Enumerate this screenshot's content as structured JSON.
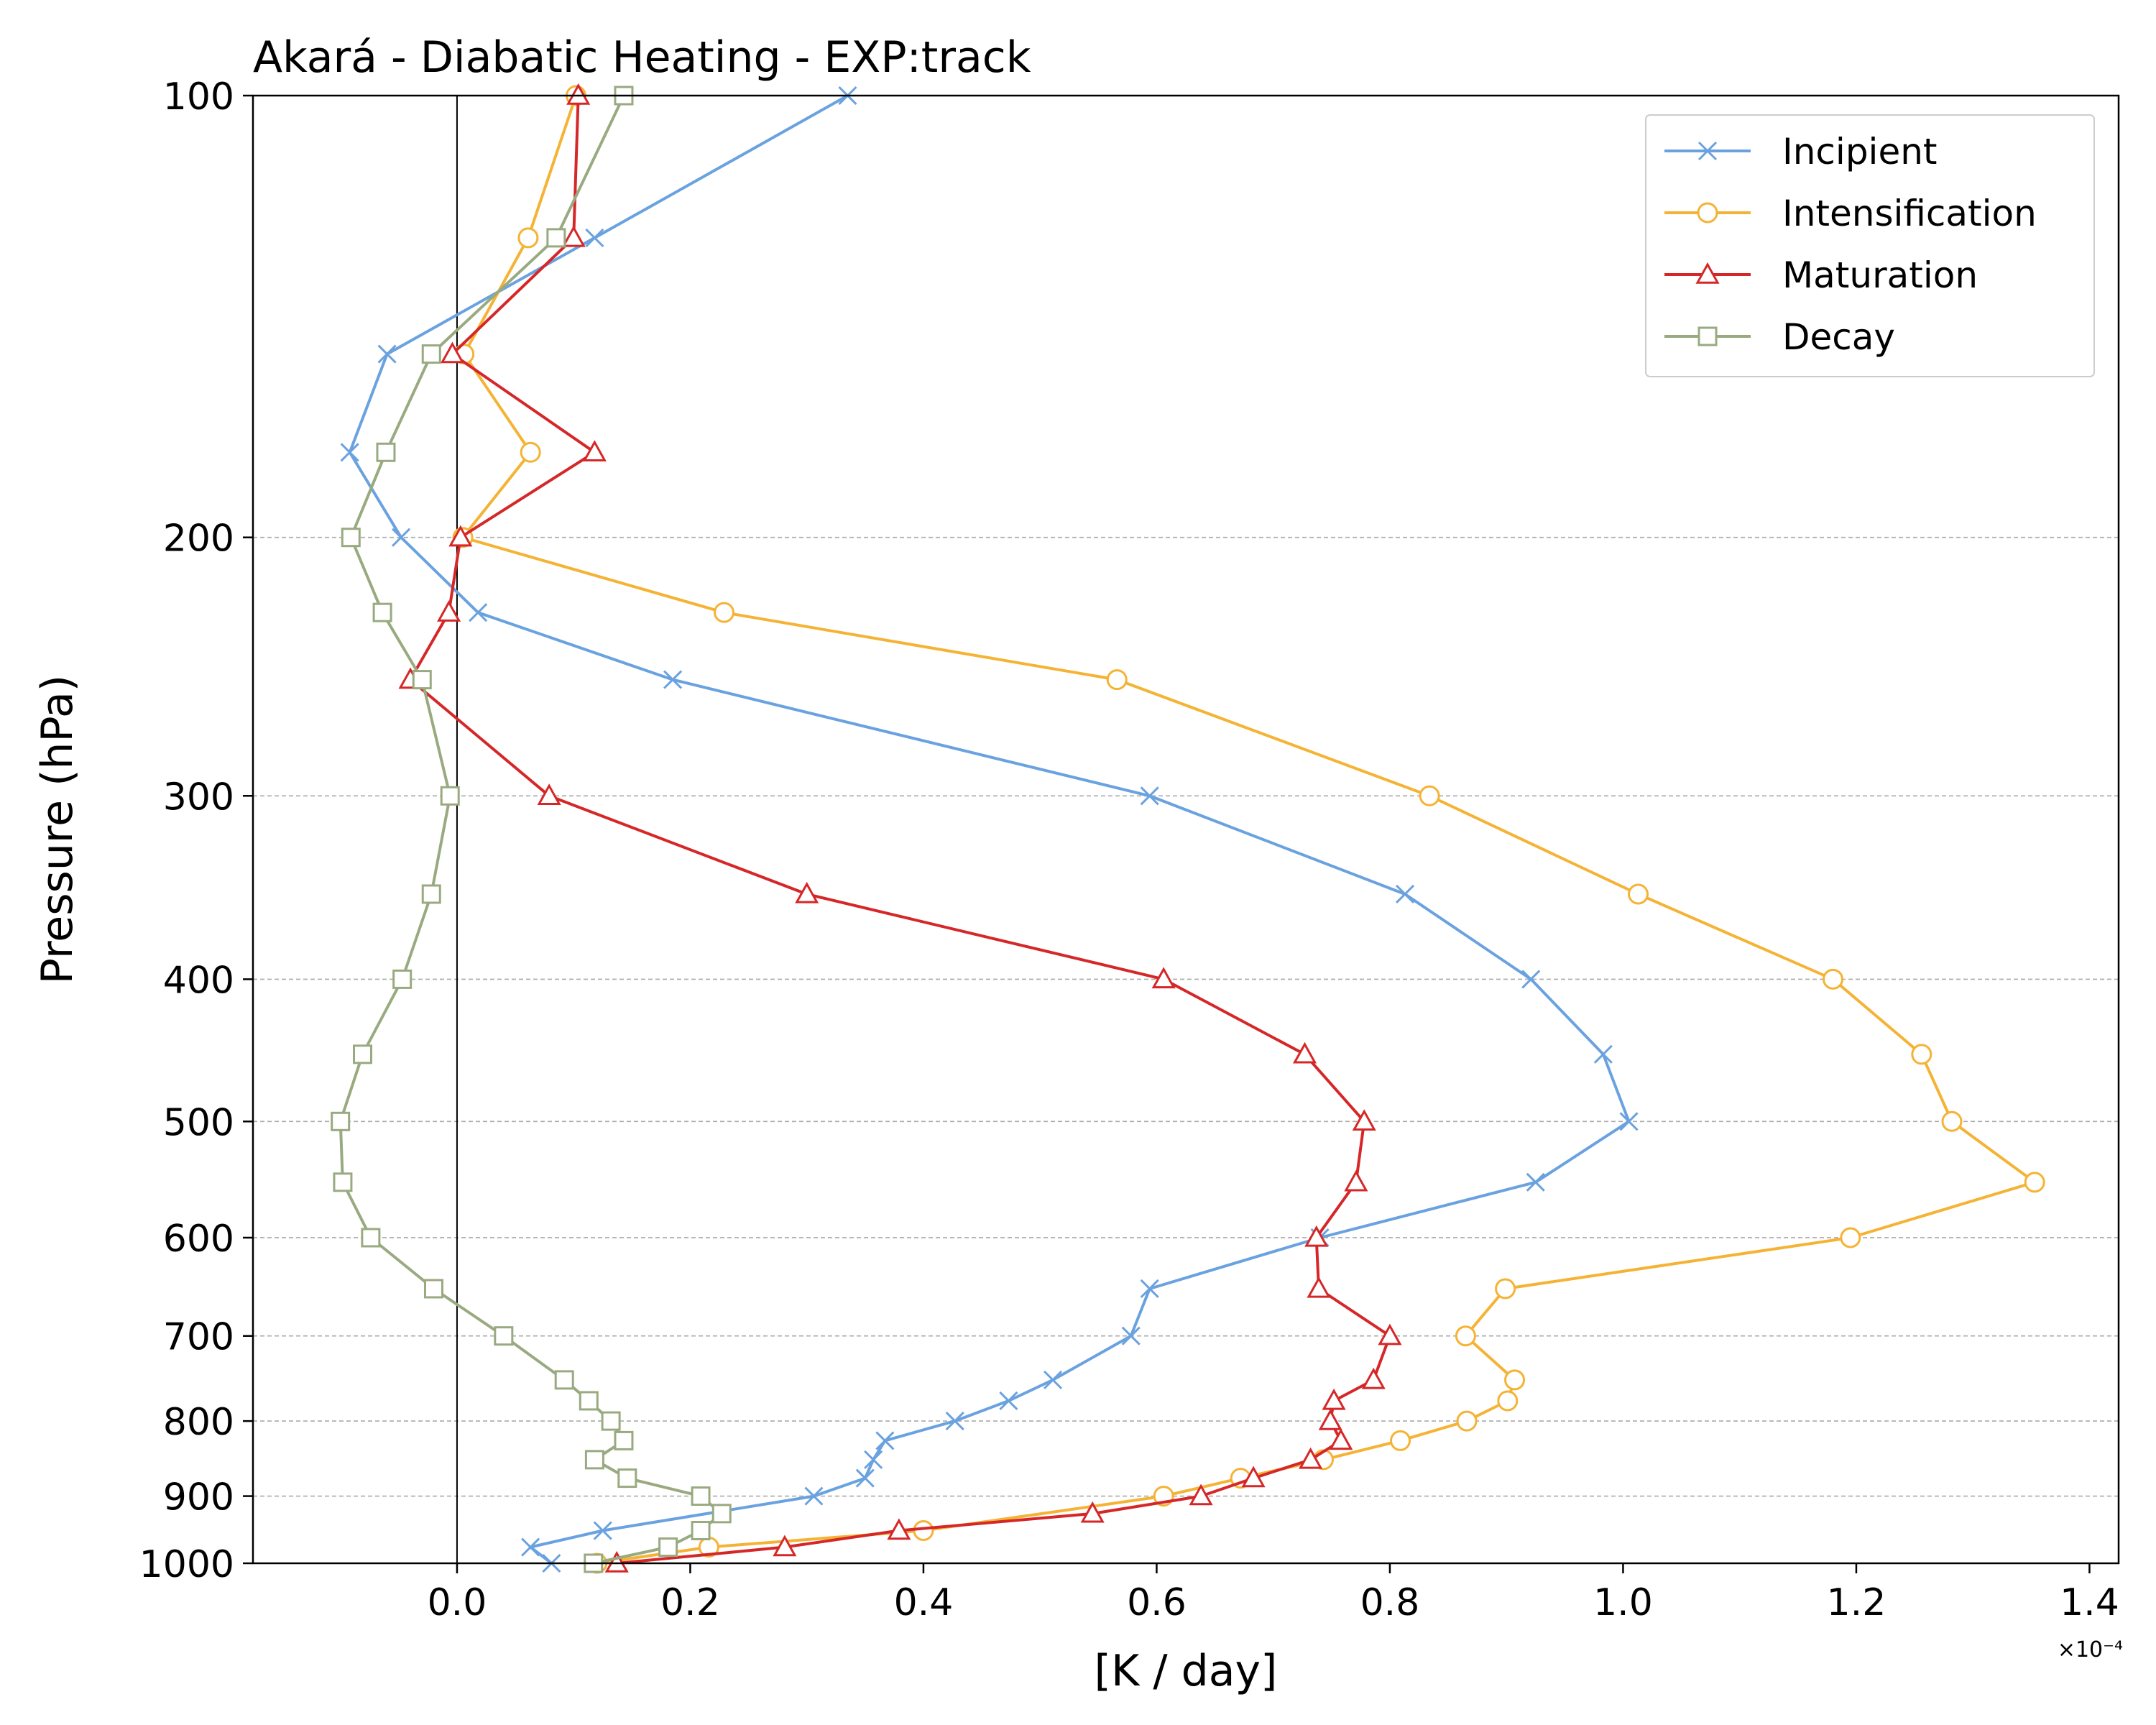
{
  "chart_data": {
    "type": "line",
    "title": "Akará - Diabatic Heating - EXP:track",
    "xlabel": "[K / day]",
    "ylabel": "Pressure (hPa)",
    "x_offset_label": "×10⁻⁴",
    "x_scale_exponent": -4,
    "xlim": [
      -0.175,
      1.425
    ],
    "ylim": [
      1000,
      100
    ],
    "y_scale": "log",
    "y_direction": "inverted",
    "xticks": [
      0.0,
      0.2,
      0.4,
      0.6,
      0.8,
      1.0,
      1.2,
      1.4
    ],
    "xtick_labels": [
      "0.0",
      "0.2",
      "0.4",
      "0.6",
      "0.8",
      "1.0",
      "1.2",
      "1.4"
    ],
    "yticks": [
      100,
      200,
      300,
      400,
      500,
      600,
      700,
      800,
      900,
      1000
    ],
    "ytick_labels": [
      "100",
      "200",
      "300",
      "400",
      "500",
      "600",
      "700",
      "800",
      "900",
      "1000"
    ],
    "grid": "horizontal dashed at y ticks",
    "zero_line": true,
    "legend_position": "upper right",
    "series": [
      {
        "name": "Incipient",
        "color": "#6aa2e0",
        "marker": "x",
        "points": [
          [
            0.335,
            100
          ],
          [
            0.118,
            125
          ],
          [
            -0.06,
            150
          ],
          [
            -0.092,
            175
          ],
          [
            -0.048,
            200
          ],
          [
            0.018,
            225
          ],
          [
            0.185,
            250
          ],
          [
            0.594,
            300
          ],
          [
            0.813,
            350
          ],
          [
            0.921,
            400
          ],
          [
            0.983,
            450
          ],
          [
            1.005,
            500
          ],
          [
            0.925,
            550
          ],
          [
            0.74,
            600
          ],
          [
            0.594,
            650
          ],
          [
            0.578,
            700
          ],
          [
            0.511,
            750
          ],
          [
            0.473,
            775
          ],
          [
            0.427,
            800
          ],
          [
            0.367,
            825
          ],
          [
            0.357,
            850
          ],
          [
            0.35,
            875
          ],
          [
            0.306,
            900
          ],
          [
            0.125,
            950
          ],
          [
            0.063,
            975
          ],
          [
            0.081,
            1000
          ]
        ]
      },
      {
        "name": "Intensification",
        "color": "#f5b335",
        "marker": "o",
        "points": [
          [
            0.102,
            100
          ],
          [
            0.061,
            125
          ],
          [
            0.006,
            150
          ],
          [
            0.063,
            175
          ],
          [
            0.005,
            200
          ],
          [
            0.229,
            225
          ],
          [
            0.566,
            250
          ],
          [
            0.834,
            300
          ],
          [
            1.013,
            350
          ],
          [
            1.18,
            400
          ],
          [
            1.256,
            450
          ],
          [
            1.282,
            500
          ],
          [
            1.353,
            550
          ],
          [
            1.195,
            600
          ],
          [
            0.899,
            650
          ],
          [
            0.865,
            700
          ],
          [
            0.907,
            750
          ],
          [
            0.901,
            775
          ],
          [
            0.866,
            800
          ],
          [
            0.809,
            825
          ],
          [
            0.743,
            850
          ],
          [
            0.672,
            875
          ],
          [
            0.606,
            900
          ],
          [
            0.4,
            950
          ],
          [
            0.216,
            975
          ],
          [
            0.12,
            1000
          ]
        ]
      },
      {
        "name": "Maturation",
        "color": "#d62728",
        "marker": "^",
        "points": [
          [
            0.104,
            100
          ],
          [
            0.1,
            125
          ],
          [
            -0.004,
            150
          ],
          [
            0.118,
            175
          ],
          [
            0.003,
            200
          ],
          [
            -0.007,
            225
          ],
          [
            -0.04,
            250
          ],
          [
            0.079,
            300
          ],
          [
            0.3,
            350
          ],
          [
            0.606,
            400
          ],
          [
            0.727,
            450
          ],
          [
            0.778,
            500
          ],
          [
            0.771,
            550
          ],
          [
            0.737,
            600
          ],
          [
            0.739,
            650
          ],
          [
            0.8,
            700
          ],
          [
            0.786,
            750
          ],
          [
            0.752,
            775
          ],
          [
            0.749,
            800
          ],
          [
            0.758,
            825
          ],
          [
            0.732,
            850
          ],
          [
            0.683,
            875
          ],
          [
            0.638,
            900
          ],
          [
            0.545,
            925
          ],
          [
            0.379,
            950
          ],
          [
            0.281,
            975
          ],
          [
            0.137,
            1000
          ]
        ]
      },
      {
        "name": "Decay",
        "color": "#99aa80",
        "marker": "s",
        "points": [
          [
            0.143,
            100
          ],
          [
            0.085,
            125
          ],
          [
            -0.022,
            150
          ],
          [
            -0.061,
            175
          ],
          [
            -0.091,
            200
          ],
          [
            -0.064,
            225
          ],
          [
            -0.03,
            250
          ],
          [
            -0.006,
            300
          ],
          [
            -0.022,
            350
          ],
          [
            -0.047,
            400
          ],
          [
            -0.081,
            450
          ],
          [
            -0.1,
            500
          ],
          [
            -0.098,
            550
          ],
          [
            -0.074,
            600
          ],
          [
            -0.02,
            650
          ],
          [
            0.04,
            700
          ],
          [
            0.092,
            750
          ],
          [
            0.113,
            775
          ],
          [
            0.132,
            800
          ],
          [
            0.143,
            825
          ],
          [
            0.118,
            850
          ],
          [
            0.146,
            875
          ],
          [
            0.209,
            900
          ],
          [
            0.227,
            925
          ],
          [
            0.209,
            950
          ],
          [
            0.181,
            975
          ],
          [
            0.117,
            1000
          ]
        ]
      }
    ]
  }
}
